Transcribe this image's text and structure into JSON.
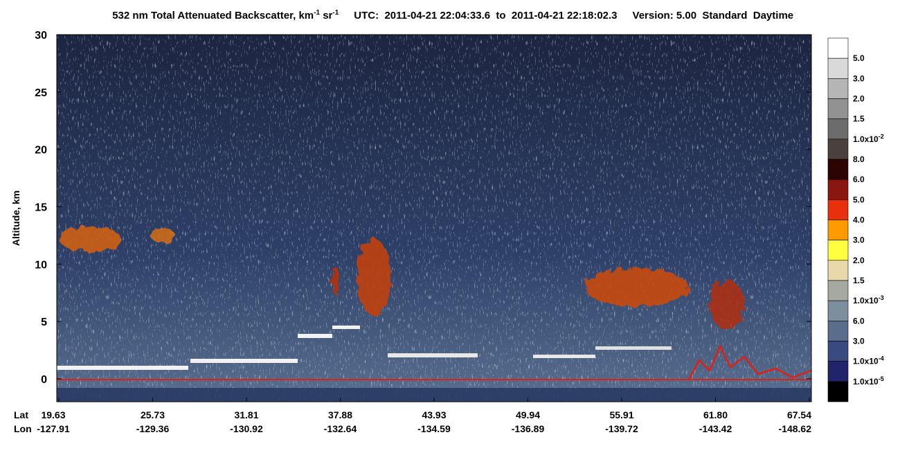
{
  "chart_data": {
    "type": "heatmap",
    "title_parts": [
      "532 nm Total Attenuated Backscatter, km",
      "-1",
      " sr",
      "-1"
    ],
    "utc": "UTC:  2011-04-21 22:04:33.6  to  2011-04-21 22:18:02.3",
    "version": "Version: 5.00  Standard  Daytime",
    "ylabel": "Altitude, km",
    "ylim": [
      -2,
      30
    ],
    "yticks": [
      0,
      5,
      10,
      15,
      20,
      25,
      30
    ],
    "x_titles": [
      "Lat",
      "Lon"
    ],
    "lat": [
      "19.63",
      "25.73",
      "31.81",
      "37.88",
      "43.93",
      "49.94",
      "55.91",
      "61.80",
      "67.54"
    ],
    "lon": [
      "-127.91",
      "-129.36",
      "-130.92",
      "-132.64",
      "-134.59",
      "-136.89",
      "-139.72",
      "-143.42",
      "-148.62"
    ],
    "colorbar_colors": [
      "#ffffff",
      "#d9d9d9",
      "#b5b5b5",
      "#929292",
      "#6c6c6c",
      "#4a403d",
      "#2c0404",
      "#8a1610",
      "#e8300c",
      "#ff9a00",
      "#ffff40",
      "#e9d9aa",
      "#a6a9a2",
      "#7d8e9e",
      "#5a6d8a",
      "#384a7f",
      "#21246b",
      "#000000"
    ],
    "colorbar_labels": [
      "5.0",
      "3.0",
      "2.0",
      "1.5",
      {
        "base": "1.0x10",
        "exp": "-2"
      },
      "8.0",
      "6.0",
      "5.0",
      "4.0",
      "3.0",
      "2.0",
      "1.5",
      {
        "base": "1.0x10",
        "exp": "-3"
      },
      "6.0",
      "3.0",
      {
        "base": "1.0x10",
        "exp": "-4"
      },
      {
        "base": "1.0x10",
        "exp": "-5"
      }
    ]
  }
}
